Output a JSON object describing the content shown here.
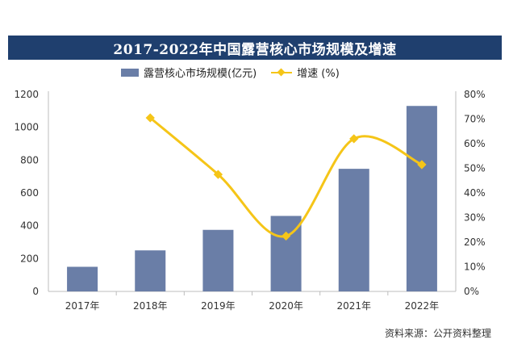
{
  "page": {
    "background": "#ffffff"
  },
  "chart_data": {
    "type": "bar",
    "title": "2017-2022年中国露营核心市场规模及增速",
    "categories": [
      "2017年",
      "2018年",
      "2019年",
      "2020年",
      "2021年",
      "2022年"
    ],
    "series": [
      {
        "name": "露营核心市场规模(亿元)",
        "type": "bar",
        "axis": "left",
        "color": "#6a7ea7",
        "values": [
          150,
          250,
          375,
          460,
          747,
          1130
        ]
      },
      {
        "name": "增速 (%)",
        "type": "line",
        "axis": "right",
        "color": "#f5c518",
        "values": [
          null,
          70.5,
          47.5,
          22.5,
          62,
          51.5
        ]
      }
    ],
    "y_left": {
      "min": 0,
      "max": 1200,
      "ticks": [
        0,
        200,
        400,
        600,
        800,
        1000,
        1200
      ]
    },
    "y_right": {
      "min": 0,
      "max": 80,
      "ticks": [
        0,
        10,
        20,
        30,
        40,
        50,
        60,
        70,
        80
      ],
      "suffix": "%"
    },
    "legend_position": "top-center",
    "grid": false
  },
  "legend": {
    "bar_label": "露营核心市场规模(亿元)",
    "line_label": "增速 (%)"
  },
  "source_text": "资料来源：公开资料整理"
}
